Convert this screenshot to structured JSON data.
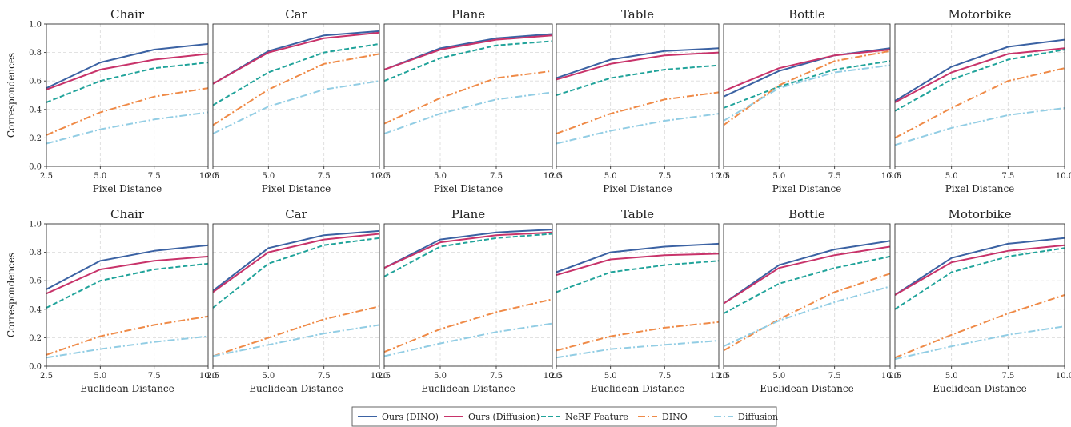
{
  "figure": {
    "legend_placement": "bottom-center"
  },
  "chart_data": [
    {
      "type": "line",
      "title": "Chair",
      "xlabel": "Pixel Distance",
      "ylabel": "Correspondences",
      "x": [
        2.5,
        5.0,
        7.5,
        10.0
      ],
      "xlim": [
        2.5,
        10.0
      ],
      "ylim": [
        0.0,
        1.0
      ],
      "xticks": [
        "2.5",
        "5.0",
        "7.5",
        "10.0"
      ],
      "yticks": [
        "0.0",
        "0.2",
        "0.4",
        "0.6",
        "0.8",
        "1.0"
      ],
      "grid": true,
      "series": [
        {
          "name": "Ours (DINO)",
          "values": [
            0.55,
            0.73,
            0.82,
            0.86
          ]
        },
        {
          "name": "Ours (Diffusion)",
          "values": [
            0.54,
            0.68,
            0.75,
            0.79
          ]
        },
        {
          "name": "NeRF Feature",
          "values": [
            0.45,
            0.6,
            0.69,
            0.73
          ]
        },
        {
          "name": "DINO",
          "values": [
            0.22,
            0.38,
            0.49,
            0.55
          ]
        },
        {
          "name": "Diffusion",
          "values": [
            0.16,
            0.26,
            0.33,
            0.38
          ]
        }
      ]
    },
    {
      "type": "line",
      "title": "Car",
      "xlabel": "Pixel Distance",
      "ylabel": "",
      "x": [
        2.5,
        5.0,
        7.5,
        10.0
      ],
      "xlim": [
        2.5,
        10.0
      ],
      "ylim": [
        0.0,
        1.0
      ],
      "xticks": [
        "2.5",
        "5.0",
        "7.5",
        "10.0"
      ],
      "yticks": [],
      "grid": true,
      "series": [
        {
          "name": "Ours (DINO)",
          "values": [
            0.58,
            0.81,
            0.92,
            0.95
          ]
        },
        {
          "name": "Ours (Diffusion)",
          "values": [
            0.58,
            0.8,
            0.9,
            0.94
          ]
        },
        {
          "name": "NeRF Feature",
          "values": [
            0.43,
            0.66,
            0.8,
            0.86
          ]
        },
        {
          "name": "DINO",
          "values": [
            0.29,
            0.54,
            0.72,
            0.79
          ]
        },
        {
          "name": "Diffusion",
          "values": [
            0.23,
            0.42,
            0.54,
            0.6
          ]
        }
      ]
    },
    {
      "type": "line",
      "title": "Plane",
      "xlabel": "Pixel Distance",
      "ylabel": "",
      "x": [
        2.5,
        5.0,
        7.5,
        10.0
      ],
      "xlim": [
        2.5,
        10.0
      ],
      "ylim": [
        0.0,
        1.0
      ],
      "xticks": [
        "2.5",
        "5.0",
        "7.5",
        "10.0"
      ],
      "yticks": [],
      "grid": true,
      "series": [
        {
          "name": "Ours (DINO)",
          "values": [
            0.68,
            0.83,
            0.9,
            0.93
          ]
        },
        {
          "name": "Ours (Diffusion)",
          "values": [
            0.68,
            0.82,
            0.89,
            0.92
          ]
        },
        {
          "name": "NeRF Feature",
          "values": [
            0.6,
            0.76,
            0.85,
            0.88
          ]
        },
        {
          "name": "DINO",
          "values": [
            0.3,
            0.48,
            0.62,
            0.67
          ]
        },
        {
          "name": "Diffusion",
          "values": [
            0.23,
            0.37,
            0.47,
            0.52
          ]
        }
      ]
    },
    {
      "type": "line",
      "title": "Table",
      "xlabel": "Pixel Distance",
      "ylabel": "",
      "x": [
        2.5,
        5.0,
        7.5,
        10.0
      ],
      "xlim": [
        2.5,
        10.0
      ],
      "ylim": [
        0.0,
        1.0
      ],
      "xticks": [
        "2.5",
        "5.0",
        "7.5",
        "10.0"
      ],
      "yticks": [],
      "grid": true,
      "series": [
        {
          "name": "Ours (DINO)",
          "values": [
            0.62,
            0.75,
            0.81,
            0.83
          ]
        },
        {
          "name": "Ours (Diffusion)",
          "values": [
            0.61,
            0.72,
            0.78,
            0.8
          ]
        },
        {
          "name": "NeRF Feature",
          "values": [
            0.5,
            0.62,
            0.68,
            0.71
          ]
        },
        {
          "name": "DINO",
          "values": [
            0.23,
            0.37,
            0.47,
            0.52
          ]
        },
        {
          "name": "Diffusion",
          "values": [
            0.16,
            0.25,
            0.32,
            0.37
          ]
        }
      ]
    },
    {
      "type": "line",
      "title": "Bottle",
      "xlabel": "Pixel Distance",
      "ylabel": "",
      "x": [
        2.5,
        5.0,
        7.5,
        10.0
      ],
      "xlim": [
        2.5,
        10.0
      ],
      "ylim": [
        0.0,
        1.0
      ],
      "xticks": [
        "2.5",
        "5.0",
        "7.5",
        "10.0"
      ],
      "yticks": [],
      "grid": true,
      "series": [
        {
          "name": "Ours (DINO)",
          "values": [
            0.49,
            0.67,
            0.78,
            0.83
          ]
        },
        {
          "name": "Ours (Diffusion)",
          "values": [
            0.53,
            0.69,
            0.78,
            0.82
          ]
        },
        {
          "name": "NeRF Feature",
          "values": [
            0.41,
            0.56,
            0.68,
            0.74
          ]
        },
        {
          "name": "DINO",
          "values": [
            0.29,
            0.57,
            0.74,
            0.81
          ]
        },
        {
          "name": "Diffusion",
          "values": [
            0.32,
            0.55,
            0.66,
            0.71
          ]
        }
      ]
    },
    {
      "type": "line",
      "title": "Motorbike",
      "xlabel": "Pixel Distance",
      "ylabel": "",
      "x": [
        2.5,
        5.0,
        7.5,
        10.0
      ],
      "xlim": [
        2.5,
        10.0
      ],
      "ylim": [
        0.0,
        1.0
      ],
      "xticks": [
        "2.5",
        "5.0",
        "7.5",
        "10.0"
      ],
      "yticks": [],
      "grid": true,
      "series": [
        {
          "name": "Ours (DINO)",
          "values": [
            0.46,
            0.7,
            0.84,
            0.89
          ]
        },
        {
          "name": "Ours (Diffusion)",
          "values": [
            0.45,
            0.66,
            0.79,
            0.83
          ]
        },
        {
          "name": "NeRF Feature",
          "values": [
            0.39,
            0.61,
            0.75,
            0.82
          ]
        },
        {
          "name": "DINO",
          "values": [
            0.2,
            0.41,
            0.6,
            0.69
          ]
        },
        {
          "name": "Diffusion",
          "values": [
            0.15,
            0.27,
            0.36,
            0.41
          ]
        }
      ]
    },
    {
      "type": "line",
      "title": "Chair",
      "xlabel": "Euclidean Distance",
      "ylabel": "Correspondences",
      "x": [
        2.5,
        5.0,
        7.5,
        10.0
      ],
      "xlim": [
        2.5,
        10.0
      ],
      "ylim": [
        0.0,
        1.0
      ],
      "xticks": [
        "2.5",
        "5.0",
        "7.5",
        "10.0"
      ],
      "yticks": [
        "0.0",
        "0.2",
        "0.4",
        "0.6",
        "0.8",
        "1.0"
      ],
      "grid": true,
      "series": [
        {
          "name": "Ours (DINO)",
          "values": [
            0.54,
            0.74,
            0.81,
            0.85
          ]
        },
        {
          "name": "Ours (Diffusion)",
          "values": [
            0.51,
            0.68,
            0.74,
            0.77
          ]
        },
        {
          "name": "NeRF Feature",
          "values": [
            0.41,
            0.6,
            0.68,
            0.72
          ]
        },
        {
          "name": "DINO",
          "values": [
            0.08,
            0.21,
            0.29,
            0.35
          ]
        },
        {
          "name": "Diffusion",
          "values": [
            0.06,
            0.12,
            0.17,
            0.21
          ]
        }
      ]
    },
    {
      "type": "line",
      "title": "Car",
      "xlabel": "Euclidean Distance",
      "ylabel": "",
      "x": [
        2.5,
        5.0,
        7.5,
        10.0
      ],
      "xlim": [
        2.5,
        10.0
      ],
      "ylim": [
        0.0,
        1.0
      ],
      "xticks": [
        "2.5",
        "5.0",
        "7.5",
        "10.0"
      ],
      "yticks": [],
      "grid": true,
      "series": [
        {
          "name": "Ours (DINO)",
          "values": [
            0.53,
            0.83,
            0.92,
            0.95
          ]
        },
        {
          "name": "Ours (Diffusion)",
          "values": [
            0.52,
            0.8,
            0.89,
            0.93
          ]
        },
        {
          "name": "NeRF Feature",
          "values": [
            0.41,
            0.72,
            0.85,
            0.9
          ]
        },
        {
          "name": "DINO",
          "values": [
            0.07,
            0.2,
            0.33,
            0.42
          ]
        },
        {
          "name": "Diffusion",
          "values": [
            0.07,
            0.15,
            0.23,
            0.29
          ]
        }
      ]
    },
    {
      "type": "line",
      "title": "Plane",
      "xlabel": "Euclidean Distance",
      "ylabel": "",
      "x": [
        2.5,
        5.0,
        7.5,
        10.0
      ],
      "xlim": [
        2.5,
        10.0
      ],
      "ylim": [
        0.0,
        1.0
      ],
      "xticks": [
        "2.5",
        "5.0",
        "7.5",
        "10.0"
      ],
      "yticks": [],
      "grid": true,
      "series": [
        {
          "name": "Ours (DINO)",
          "values": [
            0.69,
            0.89,
            0.94,
            0.96
          ]
        },
        {
          "name": "Ours (Diffusion)",
          "values": [
            0.69,
            0.87,
            0.92,
            0.94
          ]
        },
        {
          "name": "NeRF Feature",
          "values": [
            0.63,
            0.84,
            0.9,
            0.93
          ]
        },
        {
          "name": "DINO",
          "values": [
            0.1,
            0.26,
            0.38,
            0.47
          ]
        },
        {
          "name": "Diffusion",
          "values": [
            0.07,
            0.16,
            0.24,
            0.3
          ]
        }
      ]
    },
    {
      "type": "line",
      "title": "Table",
      "xlabel": "Euclidean Distance",
      "ylabel": "",
      "x": [
        2.5,
        5.0,
        7.5,
        10.0
      ],
      "xlim": [
        2.5,
        10.0
      ],
      "ylim": [
        0.0,
        1.0
      ],
      "xticks": [
        "2.5",
        "5.0",
        "7.5",
        "10.0"
      ],
      "yticks": [],
      "grid": true,
      "series": [
        {
          "name": "Ours (DINO)",
          "values": [
            0.66,
            0.8,
            0.84,
            0.86
          ]
        },
        {
          "name": "Ours (Diffusion)",
          "values": [
            0.64,
            0.75,
            0.78,
            0.79
          ]
        },
        {
          "name": "NeRF Feature",
          "values": [
            0.52,
            0.66,
            0.71,
            0.74
          ]
        },
        {
          "name": "DINO",
          "values": [
            0.11,
            0.21,
            0.27,
            0.31
          ]
        },
        {
          "name": "Diffusion",
          "values": [
            0.06,
            0.12,
            0.15,
            0.18
          ]
        }
      ]
    },
    {
      "type": "line",
      "title": "Bottle",
      "xlabel": "Euclidean Distance",
      "ylabel": "",
      "x": [
        2.5,
        5.0,
        7.5,
        10.0
      ],
      "xlim": [
        2.5,
        10.0
      ],
      "ylim": [
        0.0,
        1.0
      ],
      "xticks": [
        "2.5",
        "5.0",
        "7.5",
        "10.0"
      ],
      "yticks": [],
      "grid": true,
      "series": [
        {
          "name": "Ours (DINO)",
          "values": [
            0.44,
            0.71,
            0.82,
            0.88
          ]
        },
        {
          "name": "Ours (Diffusion)",
          "values": [
            0.44,
            0.69,
            0.78,
            0.84
          ]
        },
        {
          "name": "NeRF Feature",
          "values": [
            0.37,
            0.58,
            0.69,
            0.77
          ]
        },
        {
          "name": "DINO",
          "values": [
            0.11,
            0.33,
            0.52,
            0.65
          ]
        },
        {
          "name": "Diffusion",
          "values": [
            0.14,
            0.32,
            0.45,
            0.56
          ]
        }
      ]
    },
    {
      "type": "line",
      "title": "Motorbike",
      "xlabel": "Euclidean Distance",
      "ylabel": "",
      "x": [
        2.5,
        5.0,
        7.5,
        10.0
      ],
      "xlim": [
        2.5,
        10.0
      ],
      "ylim": [
        0.0,
        1.0
      ],
      "xticks": [
        "2.5",
        "5.0",
        "7.5",
        "10.0"
      ],
      "yticks": [],
      "grid": true,
      "series": [
        {
          "name": "Ours (DINO)",
          "values": [
            0.5,
            0.76,
            0.86,
            0.9
          ]
        },
        {
          "name": "Ours (Diffusion)",
          "values": [
            0.5,
            0.73,
            0.81,
            0.85
          ]
        },
        {
          "name": "NeRF Feature",
          "values": [
            0.4,
            0.66,
            0.77,
            0.83
          ]
        },
        {
          "name": "DINO",
          "values": [
            0.06,
            0.22,
            0.37,
            0.5
          ]
        },
        {
          "name": "Diffusion",
          "values": [
            0.05,
            0.14,
            0.22,
            0.28
          ]
        }
      ]
    }
  ],
  "legend": {
    "entries": [
      {
        "name": "Ours (DINO)",
        "color": "#3b62a3",
        "dash": "solid"
      },
      {
        "name": "Ours (Diffusion)",
        "color": "#c8336a",
        "dash": "dashed"
      },
      {
        "name": "NeRF Feature",
        "color": "#20a39a",
        "dash": "dash"
      },
      {
        "name": "DINO",
        "color": "#ef8a47",
        "dash": "dashdot"
      },
      {
        "name": "Diffusion",
        "color": "#92cde4",
        "dash": "dashdot"
      }
    ]
  }
}
